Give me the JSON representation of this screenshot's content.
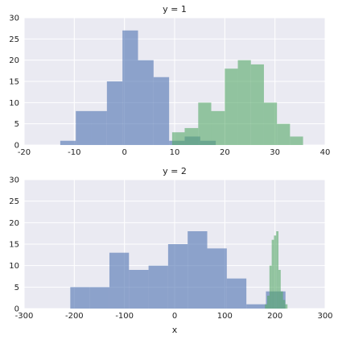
{
  "chart_data": [
    {
      "type": "histogram",
      "title": "y = 1",
      "xlabel": "",
      "ylabel": "",
      "xlim": [
        -20,
        40
      ],
      "ylim": [
        0,
        30
      ],
      "xticks": [
        -20,
        -10,
        0,
        10,
        20,
        30,
        40
      ],
      "yticks": [
        0,
        5,
        10,
        15,
        20,
        25,
        30
      ],
      "grid": true,
      "series": [
        {
          "color": "#4c72b0",
          "bins": [
            {
              "x0": -12.8,
              "x1": -9.7,
              "count": 1
            },
            {
              "x0": -9.7,
              "x1": -6.6,
              "count": 8
            },
            {
              "x0": -6.6,
              "x1": -3.5,
              "count": 8
            },
            {
              "x0": -3.5,
              "x1": -0.4,
              "count": 15
            },
            {
              "x0": -0.4,
              "x1": 2.7,
              "count": 27
            },
            {
              "x0": 2.7,
              "x1": 5.8,
              "count": 20
            },
            {
              "x0": 5.8,
              "x1": 8.9,
              "count": 16
            },
            {
              "x0": 8.9,
              "x1": 12.0,
              "count": 1
            },
            {
              "x0": 12.0,
              "x1": 15.1,
              "count": 2
            },
            {
              "x0": 15.1,
              "x1": 18.2,
              "count": 1
            }
          ]
        },
        {
          "color": "#55a868",
          "bins": [
            {
              "x0": 9.5,
              "x1": 12.0,
              "count": 3
            },
            {
              "x0": 12.0,
              "x1": 14.7,
              "count": 4
            },
            {
              "x0": 14.7,
              "x1": 17.3,
              "count": 10
            },
            {
              "x0": 17.3,
              "x1": 20.0,
              "count": 8
            },
            {
              "x0": 20.0,
              "x1": 22.6,
              "count": 18
            },
            {
              "x0": 22.6,
              "x1": 25.2,
              "count": 20
            },
            {
              "x0": 25.2,
              "x1": 27.8,
              "count": 19
            },
            {
              "x0": 27.8,
              "x1": 30.4,
              "count": 10
            },
            {
              "x0": 30.4,
              "x1": 33.0,
              "count": 5
            },
            {
              "x0": 33.0,
              "x1": 35.6,
              "count": 2
            }
          ]
        }
      ]
    },
    {
      "type": "histogram",
      "title": "y = 2",
      "xlabel": "x",
      "ylabel": "",
      "xlim": [
        -300,
        300
      ],
      "ylim": [
        0,
        30
      ],
      "xticks": [
        -300,
        -200,
        -100,
        0,
        100,
        200,
        300
      ],
      "yticks": [
        0,
        5,
        10,
        15,
        20,
        25,
        30
      ],
      "grid": true,
      "series": [
        {
          "color": "#4c72b0",
          "bins": [
            {
              "x0": -208,
              "x1": -169,
              "count": 5
            },
            {
              "x0": -169,
              "x1": -130,
              "count": 5
            },
            {
              "x0": -130,
              "x1": -91,
              "count": 13
            },
            {
              "x0": -91,
              "x1": -52,
              "count": 9
            },
            {
              "x0": -52,
              "x1": -13,
              "count": 10
            },
            {
              "x0": -13,
              "x1": 26,
              "count": 15
            },
            {
              "x0": 26,
              "x1": 65,
              "count": 18
            },
            {
              "x0": 65,
              "x1": 104,
              "count": 14
            },
            {
              "x0": 104,
              "x1": 143,
              "count": 7
            },
            {
              "x0": 143,
              "x1": 182,
              "count": 1
            },
            {
              "x0": 182,
              "x1": 221,
              "count": 4
            }
          ]
        },
        {
          "color": "#55a868",
          "bins": [
            {
              "x0": 180,
              "x1": 184.5,
              "count": 1
            },
            {
              "x0": 184.5,
              "x1": 189,
              "count": 3
            },
            {
              "x0": 189,
              "x1": 193.5,
              "count": 10
            },
            {
              "x0": 193.5,
              "x1": 198,
              "count": 16
            },
            {
              "x0": 198,
              "x1": 202.5,
              "count": 17
            },
            {
              "x0": 202.5,
              "x1": 207,
              "count": 18
            },
            {
              "x0": 207,
              "x1": 211.5,
              "count": 9
            },
            {
              "x0": 211.5,
              "x1": 216,
              "count": 4
            },
            {
              "x0": 216,
              "x1": 220.5,
              "count": 2
            },
            {
              "x0": 220.5,
              "x1": 225,
              "count": 1
            }
          ]
        }
      ]
    }
  ],
  "style": {
    "axes_background": "#eaeaf2",
    "grid_color": "#ffffff",
    "bar_opacity": 0.6
  }
}
